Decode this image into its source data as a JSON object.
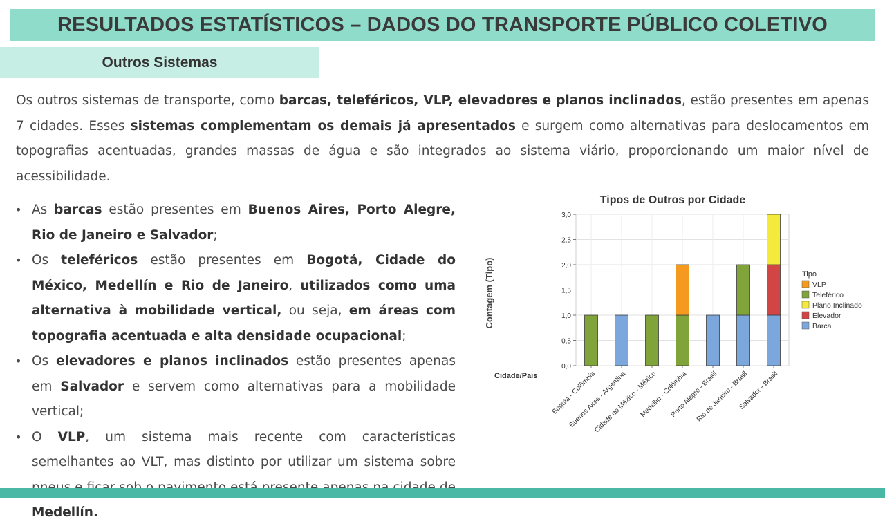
{
  "header": {
    "title": "RESULTADOS ESTATÍSTICOS – DADOS DO TRANSPORTE PÚBLICO COLETIVO"
  },
  "section": {
    "title": "Outros Sistemas"
  },
  "intro": {
    "t1": "Os outros sistemas de transporte, como ",
    "b1": "barcas, teleféricos, VLP, elevadores e planos inclinados",
    "t2": ", estão presentes em apenas 7 cidades. Esses ",
    "b2": "sistemas complementam os demais já apresentados",
    "t3": " e surgem como alternativas para deslocamentos em topografias acentuadas, grandes massas de água e são integrados ao sistema viário, proporcionando um maior nível de acessibilidade."
  },
  "bullets": [
    {
      "bullet": "•",
      "t1": "As ",
      "b1": "barcas",
      "t2": " estão presentes em ",
      "b2": "Buenos Aires, Porto Alegre, Rio de Janeiro e Salvador",
      "t3": ";"
    },
    {
      "bullet": "•",
      "t1": "Os ",
      "b1": "teleféricos",
      "t2": " estão presentes em ",
      "b2": "Bogotá, Cidade do México, Medellín e Rio de Janeiro",
      "t3": ", ",
      "b3": "utilizados como uma alternativa à mobilidade vertical,",
      "t4": " ou seja, ",
      "b4": "em áreas com topografia acentuada e alta densidade ocupacional",
      "t5": ";"
    },
    {
      "bullet": "•",
      "t1": "Os ",
      "b1": "elevadores e planos inclinados",
      "t2": " estão presentes apenas em ",
      "b2": "Salvador",
      "t3": " e servem como alternativas para a mobilidade vertical;"
    },
    {
      "bullet": "•",
      "t1": "O ",
      "b1": "VLP",
      "t2": ", um sistema mais recente com características semelhantes ao VLT, mas distinto por utilizar um sistema sobre pneus e ficar sob o pavimento está presente apenas na cidade de ",
      "b2": "Medellín."
    }
  ],
  "chart_data": {
    "type": "bar",
    "stacked": true,
    "title": "Tipos de Outros por Cidade",
    "xlabel": "Cidade/País",
    "ylabel": "Contagem (Tipo)",
    "ylim": [
      0,
      3
    ],
    "yticks": [
      "0,0",
      "0,5",
      "1,0",
      "1,5",
      "2,0",
      "2,5",
      "3,0"
    ],
    "grid": true,
    "categories": [
      "Bogotá - Colômbia",
      "Buenos Aires - Argentina",
      "Cidade do México - México",
      "Medellín - Colômbia",
      "Porto Alegre - Brasil",
      "Rio de Janeiro - Brasil",
      "Salvador - Brasil"
    ],
    "legend_title": "Tipo",
    "legend_position": "right",
    "series": [
      {
        "name": "Barca",
        "color": "#7ba7dc",
        "values": [
          0,
          1,
          0,
          0,
          1,
          1,
          1
        ]
      },
      {
        "name": "Elevador",
        "color": "#d24545",
        "values": [
          0,
          0,
          0,
          0,
          0,
          0,
          1
        ]
      },
      {
        "name": "Plano Inclinado",
        "color": "#f5ea3c",
        "values": [
          0,
          0,
          0,
          0,
          0,
          0,
          1
        ]
      },
      {
        "name": "Teleférico",
        "color": "#80a33a",
        "values": [
          1,
          0,
          1,
          1,
          0,
          1,
          0
        ]
      },
      {
        "name": "VLP",
        "color": "#f39a1f",
        "values": [
          0,
          0,
          0,
          1,
          0,
          0,
          0
        ]
      }
    ],
    "stack_order": [
      "Barca",
      "Elevador",
      "Plano Inclinado",
      "Teleférico",
      "VLP"
    ],
    "legend_order": [
      "VLP",
      "Teleférico",
      "Plano Inclinado",
      "Elevador",
      "Barca"
    ]
  }
}
